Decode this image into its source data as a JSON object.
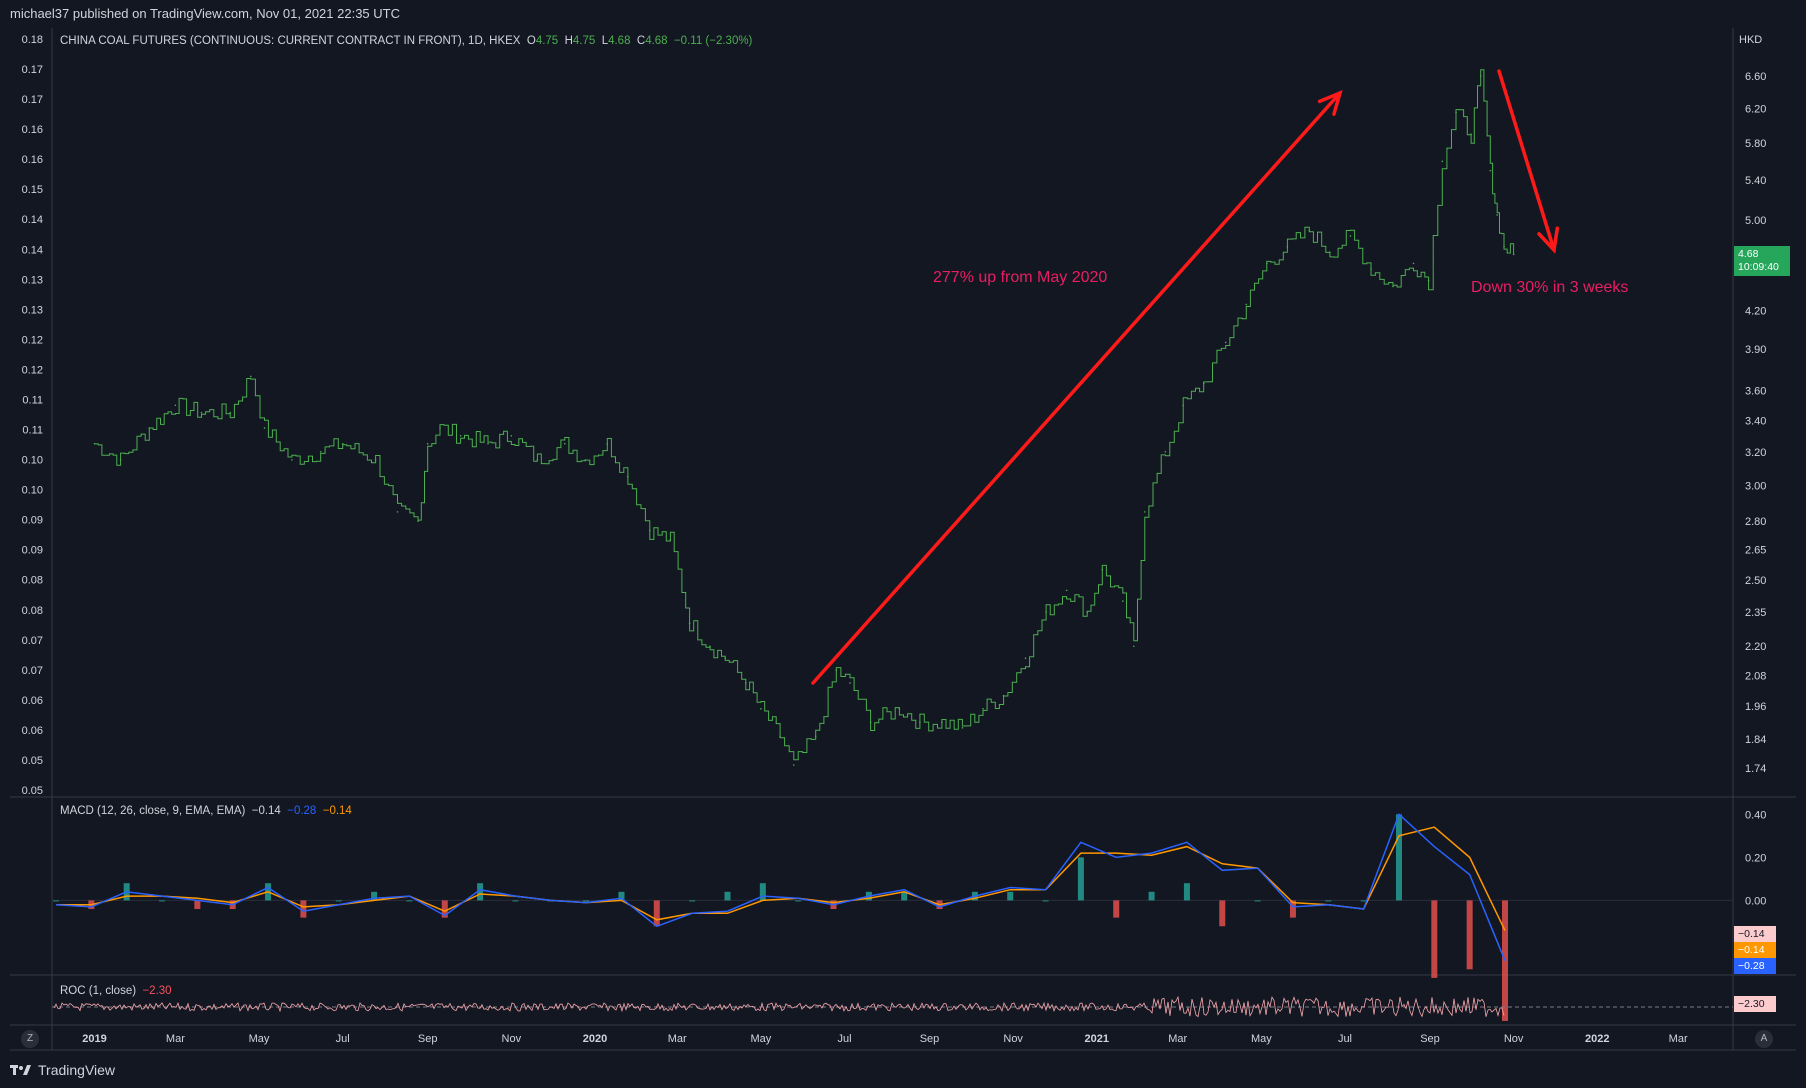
{
  "header": {
    "published": "michael37 published on TradingView.com, Nov 01, 2021 22:35 UTC"
  },
  "footer": {
    "brand": "TradingView"
  },
  "colors": {
    "background": "#131722",
    "up": "#4caf50",
    "down": "#f7525f",
    "macd": "#2962ff",
    "signal": "#ff9800",
    "arrow": "#ff1a1a",
    "annotation": "#e91e63"
  },
  "main_legend": {
    "symbol": "CHINA COAL FUTURES (CONTINUOUS: CURRENT CONTRACT IN FRONT), 1D, HKEX",
    "o_label": "O",
    "o_value": "4.75",
    "h_label": "H",
    "h_value": "4.75",
    "l_label": "L",
    "l_value": "4.68",
    "c_label": "C",
    "c_value": "4.68",
    "change": "−0.11 (−2.30%)"
  },
  "macd_legend": {
    "label": "MACD (12, 26, close, 9, EMA, EMA)",
    "hist": "−0.14",
    "macd": "−0.28",
    "signal": "−0.14"
  },
  "roc_legend": {
    "label": "ROC (1, close)",
    "value": "−2.30"
  },
  "currency": "HKD",
  "last_price": {
    "value": "4.68",
    "countdown": "10:09:40"
  },
  "macd_tags": {
    "hist": "−0.14",
    "signal": "−0.14",
    "macd": "−0.28"
  },
  "roc_tag": "−2.30",
  "annotations": {
    "up": "277% up from May 2020",
    "down": "Down 30% in 3 weeks"
  },
  "corner_left": "Z",
  "corner_right": "A",
  "chart_data": {
    "type": "line",
    "title": "CHINA COAL FUTURES (CONTINUOUS: CURRENT CONTRACT IN FRONT), 1D, HKEX",
    "log_scale": true,
    "left_axis_ticks": [
      "0.18",
      "0.17",
      "0.17",
      "0.16",
      "0.16",
      "0.15",
      "0.14",
      "0.14",
      "0.13",
      "0.13",
      "0.12",
      "0.12",
      "0.11",
      "0.11",
      "0.10",
      "0.10",
      "0.09",
      "0.09",
      "0.08",
      "0.08",
      "0.07",
      "0.07",
      "0.06",
      "0.06",
      "0.05",
      "0.05"
    ],
    "right_axis_ticks": [
      "6.60",
      "6.20",
      "5.80",
      "5.40",
      "5.00",
      "4.20",
      "3.90",
      "3.60",
      "3.40",
      "3.20",
      "3.00",
      "2.80",
      "2.65",
      "2.50",
      "2.35",
      "2.20",
      "2.08",
      "1.96",
      "1.84",
      "1.74"
    ],
    "x_ticks": [
      "2019",
      "Mar",
      "May",
      "Jul",
      "Sep",
      "Nov",
      "2020",
      "Mar",
      "May",
      "Jul",
      "Sep",
      "Nov",
      "2021",
      "Mar",
      "May",
      "Jul",
      "Sep",
      "Nov",
      "2022",
      "Mar"
    ],
    "price_series": {
      "name": "China Coal Futures",
      "x": [
        "2019-01-01",
        "2019-01-20",
        "2019-02-10",
        "2019-03-01",
        "2019-03-20",
        "2019-04-10",
        "2019-04-25",
        "2019-05-05",
        "2019-05-25",
        "2019-06-15",
        "2019-07-01",
        "2019-07-25",
        "2019-08-10",
        "2019-08-25",
        "2019-09-01",
        "2019-09-10",
        "2019-09-25",
        "2019-10-15",
        "2019-11-01",
        "2019-11-20",
        "2019-12-10",
        "2019-12-25",
        "2020-01-10",
        "2020-01-25",
        "2020-02-10",
        "2020-02-25",
        "2020-03-10",
        "2020-03-25",
        "2020-04-05",
        "2020-04-20",
        "2020-05-01",
        "2020-05-15",
        "2020-05-25",
        "2020-06-10",
        "2020-06-25",
        "2020-07-05",
        "2020-07-20",
        "2020-08-10",
        "2020-08-25",
        "2020-09-10",
        "2020-09-25",
        "2020-10-10",
        "2020-10-25",
        "2020-11-10",
        "2020-11-25",
        "2020-12-10",
        "2020-12-25",
        "2021-01-05",
        "2021-01-20",
        "2021-01-28",
        "2021-02-05",
        "2021-02-20",
        "2021-03-05",
        "2021-03-20",
        "2021-04-05",
        "2021-04-20",
        "2021-05-05",
        "2021-05-20",
        "2021-06-05",
        "2021-06-20",
        "2021-07-05",
        "2021-07-20",
        "2021-08-05",
        "2021-08-20",
        "2021-08-31",
        "2021-09-10",
        "2021-09-20",
        "2021-10-01",
        "2021-10-08",
        "2021-10-15",
        "2021-10-20",
        "2021-10-25",
        "2021-11-01"
      ],
      "y": [
        3.25,
        3.15,
        3.35,
        3.5,
        3.45,
        3.45,
        3.7,
        3.35,
        3.15,
        3.2,
        3.25,
        3.15,
        2.85,
        2.8,
        3.25,
        3.35,
        3.3,
        3.25,
        3.3,
        3.15,
        3.25,
        3.15,
        3.25,
        3.05,
        2.75,
        2.7,
        2.3,
        2.2,
        2.15,
        2.05,
        1.95,
        1.85,
        1.75,
        1.85,
        2.1,
        2.05,
        1.9,
        1.95,
        1.9,
        1.9,
        1.88,
        1.95,
        2.0,
        2.15,
        2.35,
        2.45,
        2.35,
        2.55,
        2.4,
        2.2,
        2.85,
        3.2,
        3.5,
        3.65,
        3.95,
        4.25,
        4.6,
        4.75,
        4.9,
        4.7,
        4.85,
        4.55,
        4.4,
        4.6,
        4.45,
        5.6,
        6.15,
        5.9,
        6.6,
        5.5,
        5.05,
        4.75,
        4.68
      ]
    },
    "macd": {
      "macd": [
        -0.02,
        -0.03,
        0.04,
        0.02,
        0.0,
        -0.02,
        0.06,
        -0.05,
        -0.02,
        0.01,
        0.02,
        -0.07,
        0.05,
        0.02,
        0.0,
        -0.01,
        0.01,
        -0.12,
        -0.06,
        -0.05,
        0.02,
        0.01,
        -0.02,
        0.02,
        0.05,
        -0.03,
        0.02,
        0.06,
        0.05,
        0.27,
        0.2,
        0.22,
        0.27,
        0.14,
        0.15,
        -0.03,
        -0.02,
        -0.04,
        0.4,
        0.25,
        0.12,
        -0.28
      ],
      "signal": [
        -0.02,
        -0.02,
        0.02,
        0.02,
        0.01,
        -0.01,
        0.04,
        -0.03,
        -0.02,
        0.0,
        0.02,
        -0.05,
        0.03,
        0.02,
        0.0,
        -0.01,
        0.0,
        -0.09,
        -0.06,
        -0.06,
        0.0,
        0.01,
        -0.01,
        0.01,
        0.04,
        -0.02,
        0.01,
        0.05,
        0.05,
        0.22,
        0.22,
        0.21,
        0.25,
        0.17,
        0.15,
        -0.01,
        -0.02,
        -0.04,
        0.3,
        0.34,
        0.2,
        -0.14
      ]
    },
    "roc": {
      "last": -2.3
    },
    "annotations": [
      "277% up from May 2020",
      "Down 30% in 3 weeks"
    ]
  }
}
